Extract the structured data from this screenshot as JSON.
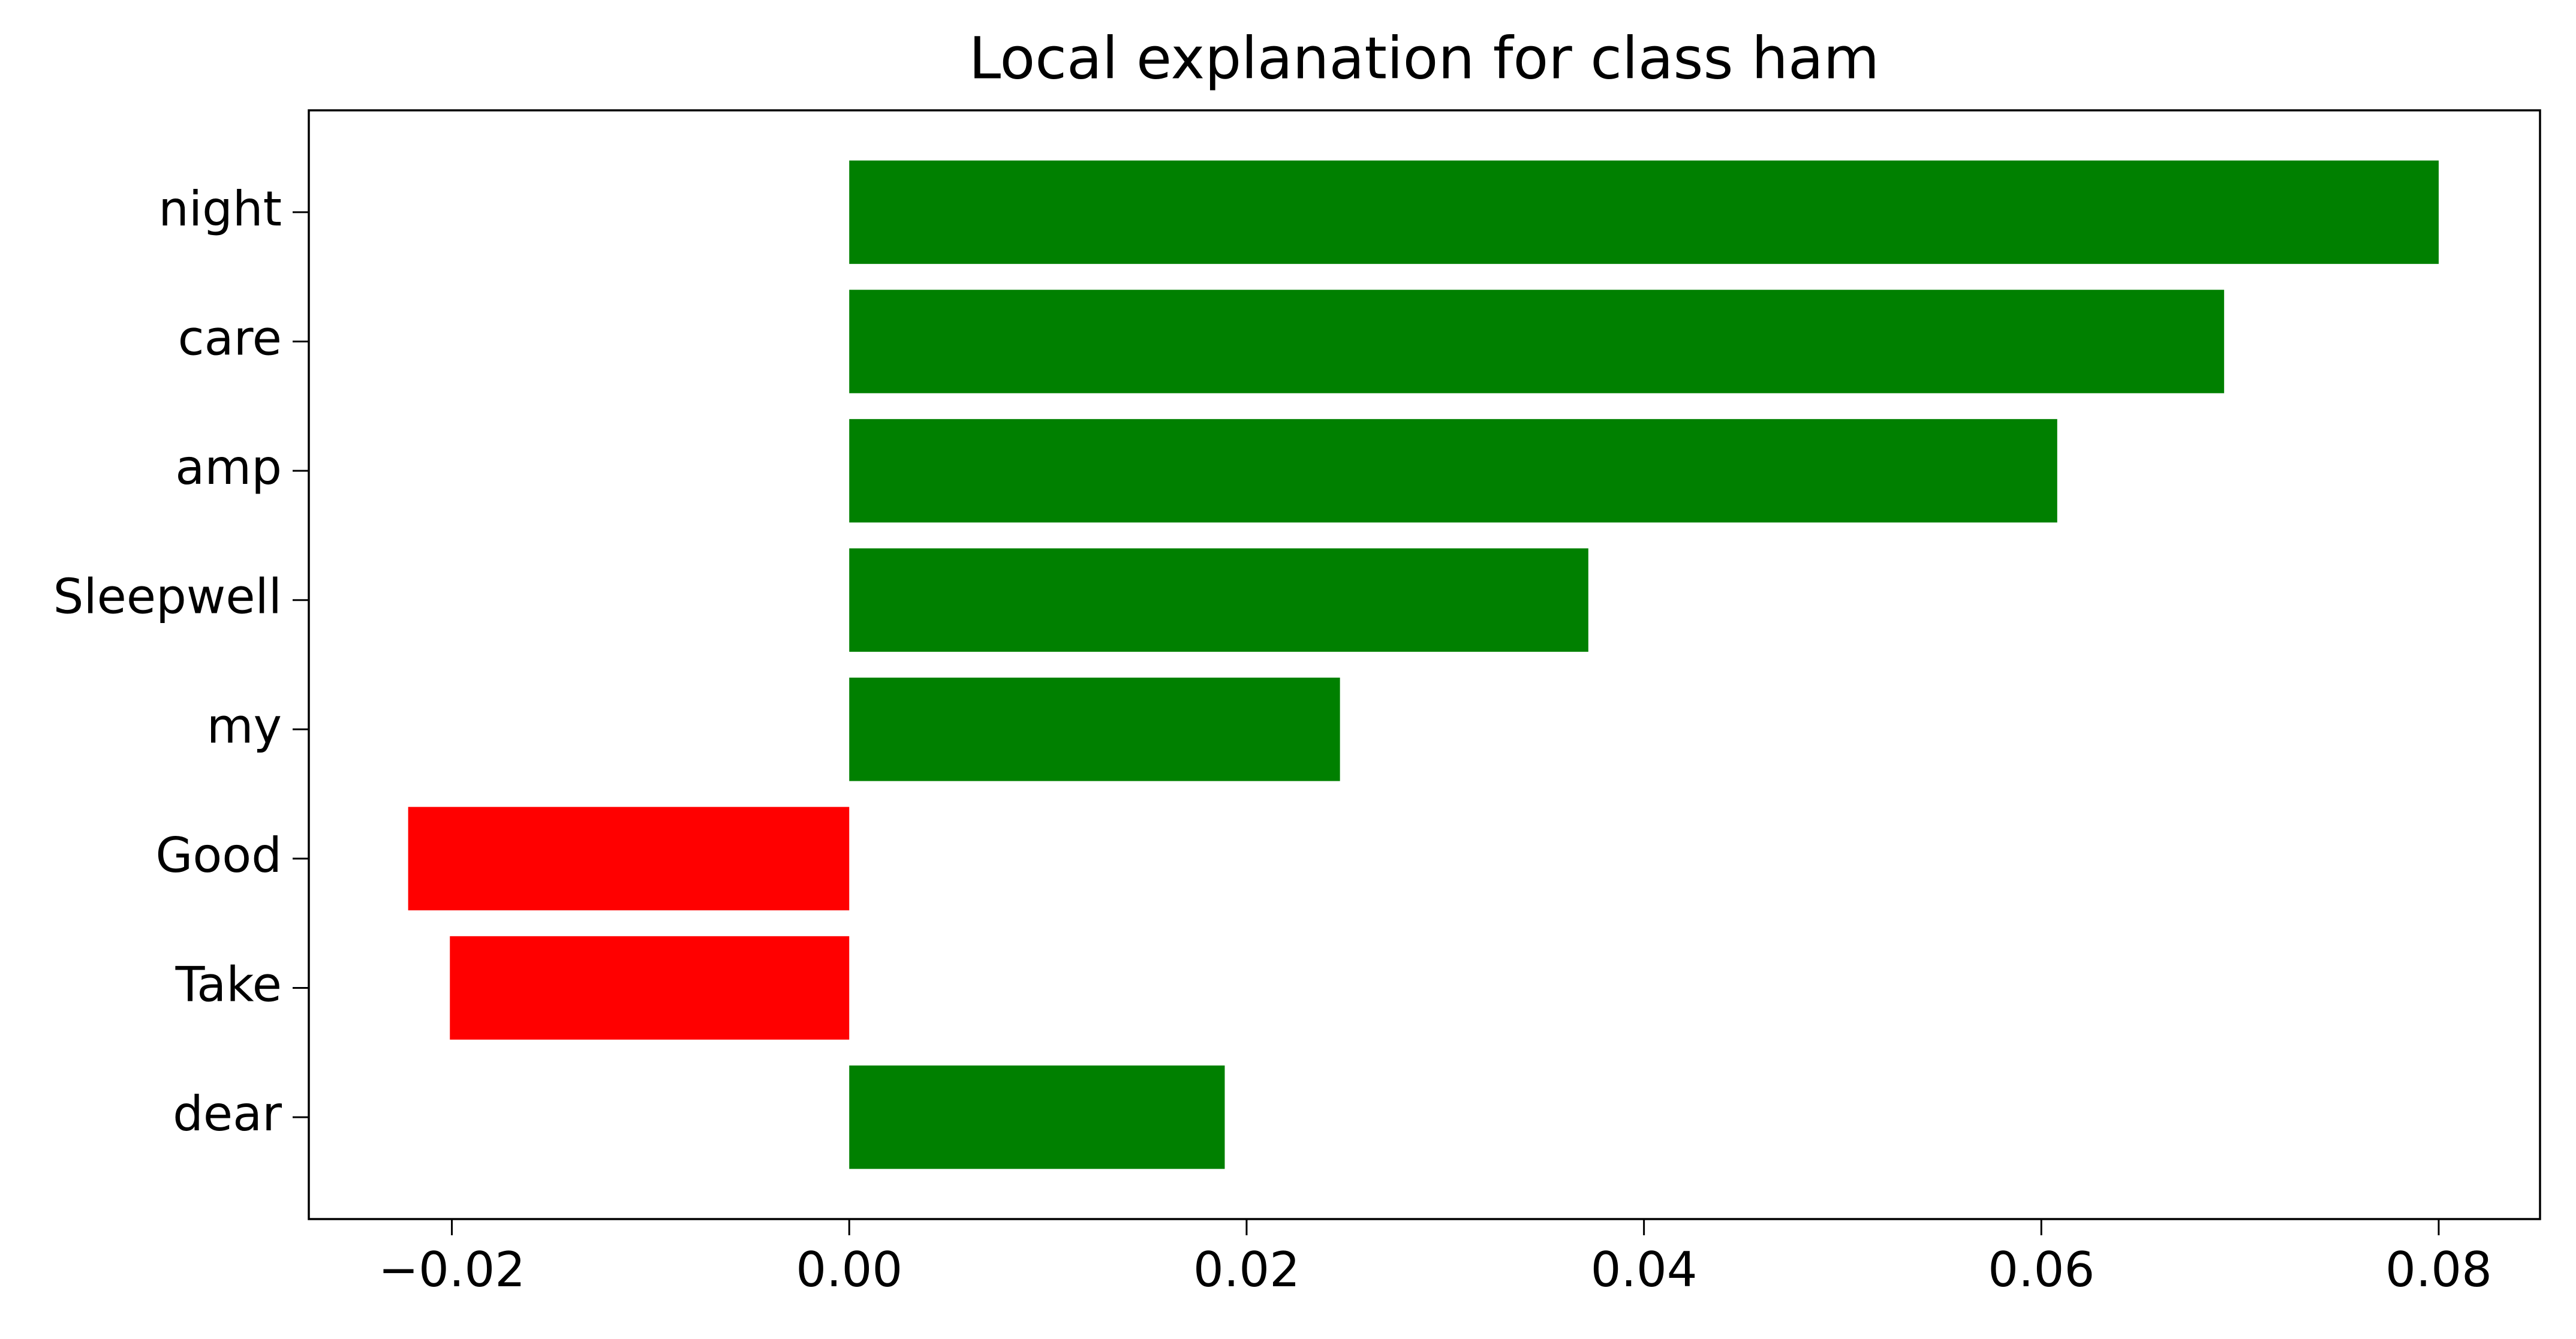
{
  "chart_data": {
    "type": "barh",
    "title": "Local explanation for class ham",
    "categories": [
      "night",
      "care",
      "amp",
      "Sleepwell",
      "my",
      "Good",
      "Take",
      "dear"
    ],
    "values": [
      0.08,
      0.0692,
      0.0608,
      0.0372,
      0.0247,
      -0.0222,
      -0.0201,
      0.0189
    ],
    "colors": [
      "#008000",
      "#008000",
      "#008000",
      "#008000",
      "#008000",
      "#ff0000",
      "#ff0000",
      "#008000"
    ],
    "xlim": [
      -0.0272,
      0.0851
    ],
    "xticks": [
      {
        "value": -0.02,
        "label": "−0.02"
      },
      {
        "value": 0,
        "label": "0.00"
      },
      0.02,
      0.04,
      0.06,
      0.08
    ],
    "grid": false
  }
}
